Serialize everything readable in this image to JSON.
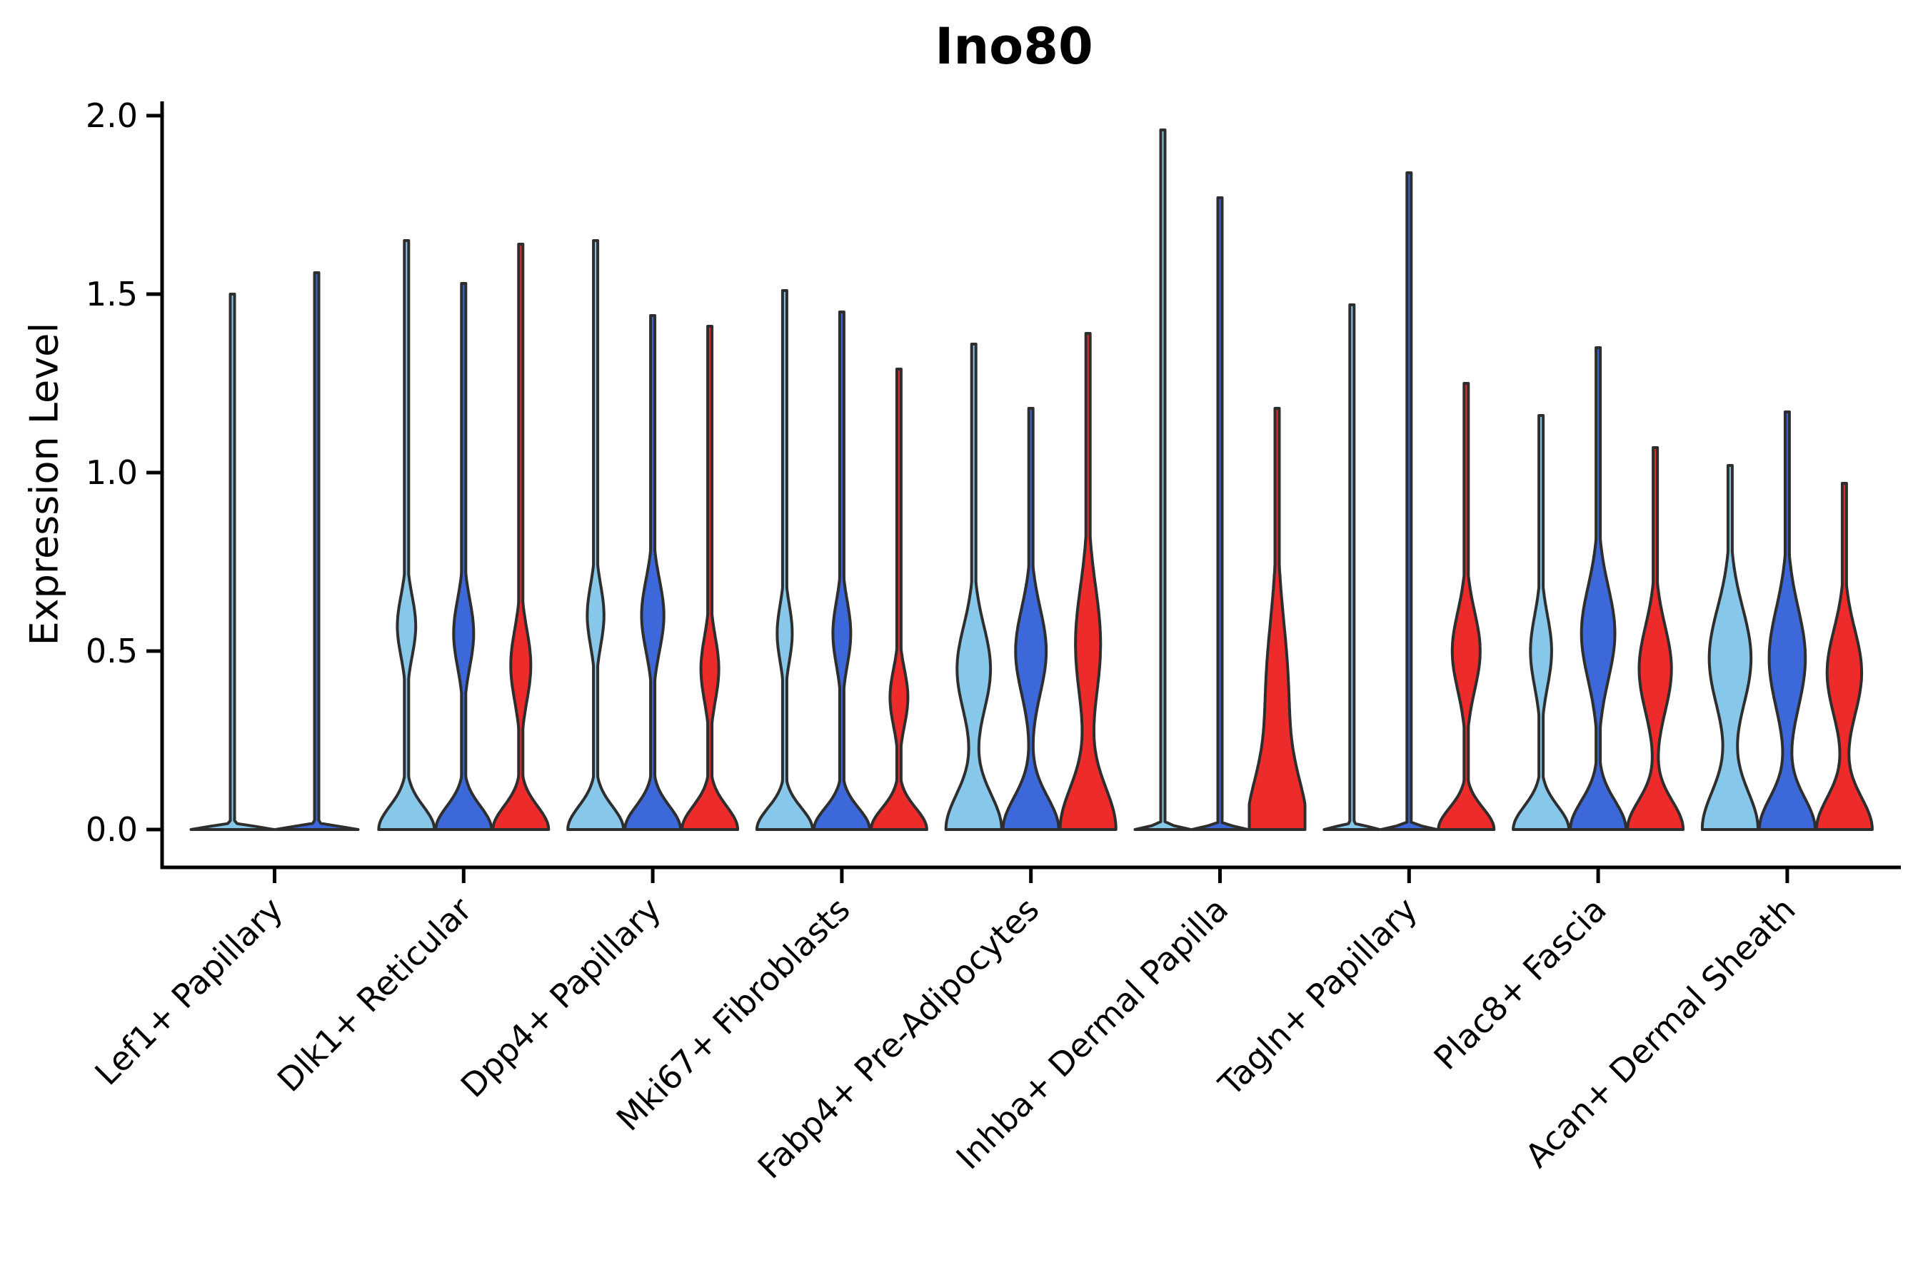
{
  "title": "Ino80",
  "chart_data": {
    "type": "violin",
    "title": "Ino80",
    "xlabel": "",
    "ylabel": "Expression Level",
    "ylim": [
      -0.11,
      2.15
    ],
    "yticks": [
      0.0,
      0.5,
      1.0,
      1.5,
      2.0
    ],
    "ytick_labels": [
      "0.0",
      "0.5",
      "1.0",
      "1.5",
      "2.0"
    ],
    "grid": false,
    "legend_position": "none",
    "colors": {
      "skyblue": "#87C7EA",
      "blue": "#3C68D9",
      "red": "#EE2B2B",
      "edge": "#2E2E2E",
      "axis": "#000000"
    },
    "categories": [
      "Lef1+ Papillary",
      "Dlk1+ Reticular",
      "Dpp4+ Papillary",
      "Mki67+ Fibroblasts",
      "Fabp4+ Pre-Adipocytes",
      "Inhba+ Dermal Papilla",
      "Tagln+ Papillary",
      "Plac8+ Fascia",
      "Acan+ Dermal Sheath"
    ],
    "violins": [
      {
        "category": "Lef1+ Papillary",
        "series": [
          {
            "color": "skyblue",
            "max": 1.5,
            "base": 0.008,
            "bulge_amp": 0,
            "bulge_center": 0,
            "bulge_sigma": 0.1
          },
          {
            "color": "blue",
            "max": 1.56,
            "base": 0.008,
            "bulge_amp": 0,
            "bulge_center": 0,
            "bulge_sigma": 0.1
          }
        ]
      },
      {
        "category": "Dlk1+ Reticular",
        "series": [
          {
            "color": "skyblue",
            "max": 1.65,
            "base": 0.065,
            "bulge_amp": 0.33,
            "bulge_center": 0.57,
            "bulge_sigma": 0.085
          },
          {
            "color": "blue",
            "max": 1.53,
            "base": 0.065,
            "bulge_amp": 0.36,
            "bulge_center": 0.55,
            "bulge_sigma": 0.095
          },
          {
            "color": "red",
            "max": 1.64,
            "base": 0.065,
            "bulge_amp": 0.36,
            "bulge_center": 0.46,
            "bulge_sigma": 0.1
          }
        ]
      },
      {
        "category": "Dpp4+ Papillary",
        "series": [
          {
            "color": "skyblue",
            "max": 1.65,
            "base": 0.065,
            "bulge_amp": 0.3,
            "bulge_center": 0.6,
            "bulge_sigma": 0.085
          },
          {
            "color": "blue",
            "max": 1.44,
            "base": 0.065,
            "bulge_amp": 0.4,
            "bulge_center": 0.6,
            "bulge_sigma": 0.1
          },
          {
            "color": "red",
            "max": 1.41,
            "base": 0.065,
            "bulge_amp": 0.32,
            "bulge_center": 0.45,
            "bulge_sigma": 0.09
          }
        ]
      },
      {
        "category": "Mki67+ Fibroblasts",
        "series": [
          {
            "color": "skyblue",
            "max": 1.51,
            "base": 0.06,
            "bulge_amp": 0.27,
            "bulge_center": 0.55,
            "bulge_sigma": 0.08
          },
          {
            "color": "blue",
            "max": 1.45,
            "base": 0.06,
            "bulge_amp": 0.32,
            "bulge_center": 0.55,
            "bulge_sigma": 0.09
          },
          {
            "color": "red",
            "max": 1.29,
            "base": 0.06,
            "bulge_amp": 0.32,
            "bulge_center": 0.37,
            "bulge_sigma": 0.08
          }
        ]
      },
      {
        "category": "Fabp4+ Pre-Adipocytes",
        "series": [
          {
            "color": "skyblue",
            "max": 1.36,
            "base": 0.1,
            "bulge_amp": 0.6,
            "bulge_center": 0.45,
            "bulge_sigma": 0.12
          },
          {
            "color": "blue",
            "max": 1.18,
            "base": 0.09,
            "bulge_amp": 0.55,
            "bulge_center": 0.5,
            "bulge_sigma": 0.12
          },
          {
            "color": "red",
            "max": 1.39,
            "base": 0.12,
            "bulge_amp": 0.45,
            "bulge_center": 0.52,
            "bulge_sigma": 0.16
          }
        ]
      },
      {
        "category": "Inhba+ Dermal Papilla",
        "series": [
          {
            "color": "skyblue",
            "max": 1.96,
            "base": 0.008,
            "bulge_amp": 0,
            "bulge_center": 0,
            "bulge_sigma": 0.1
          },
          {
            "color": "blue",
            "max": 1.77,
            "base": 0.008,
            "bulge_amp": 0,
            "bulge_center": 0,
            "bulge_sigma": 0.1
          },
          {
            "color": "red",
            "max": 1.18,
            "base": 0.14,
            "bulge_amp": 0.4,
            "bulge_center": 0.38,
            "bulge_sigma": 0.2
          }
        ]
      },
      {
        "category": "Tagln+ Papillary",
        "series": [
          {
            "color": "skyblue",
            "max": 1.47,
            "base": 0.008,
            "bulge_amp": 0,
            "bulge_center": 0,
            "bulge_sigma": 0.1
          },
          {
            "color": "blue",
            "max": 1.84,
            "base": 0.008,
            "bulge_amp": 0,
            "bulge_center": 0,
            "bulge_sigma": 0.1
          },
          {
            "color": "red",
            "max": 1.25,
            "base": 0.06,
            "bulge_amp": 0.5,
            "bulge_center": 0.5,
            "bulge_sigma": 0.11
          }
        ]
      },
      {
        "category": "Plac8+ Fascia",
        "series": [
          {
            "color": "skyblue",
            "max": 1.16,
            "base": 0.065,
            "bulge_amp": 0.38,
            "bulge_center": 0.5,
            "bulge_sigma": 0.1
          },
          {
            "color": "blue",
            "max": 1.35,
            "base": 0.08,
            "bulge_amp": 0.6,
            "bulge_center": 0.55,
            "bulge_sigma": 0.13
          },
          {
            "color": "red",
            "max": 1.07,
            "base": 0.08,
            "bulge_amp": 0.58,
            "bulge_center": 0.45,
            "bulge_sigma": 0.12
          }
        ]
      },
      {
        "category": "Acan+ Dermal Sheath",
        "series": [
          {
            "color": "skyblue",
            "max": 1.02,
            "base": 0.11,
            "bulge_amp": 0.75,
            "bulge_center": 0.48,
            "bulge_sigma": 0.14
          },
          {
            "color": "blue",
            "max": 1.17,
            "base": 0.09,
            "bulge_amp": 0.65,
            "bulge_center": 0.48,
            "bulge_sigma": 0.14
          },
          {
            "color": "red",
            "max": 0.97,
            "base": 0.09,
            "bulge_amp": 0.62,
            "bulge_center": 0.44,
            "bulge_sigma": 0.12
          }
        ]
      }
    ]
  }
}
